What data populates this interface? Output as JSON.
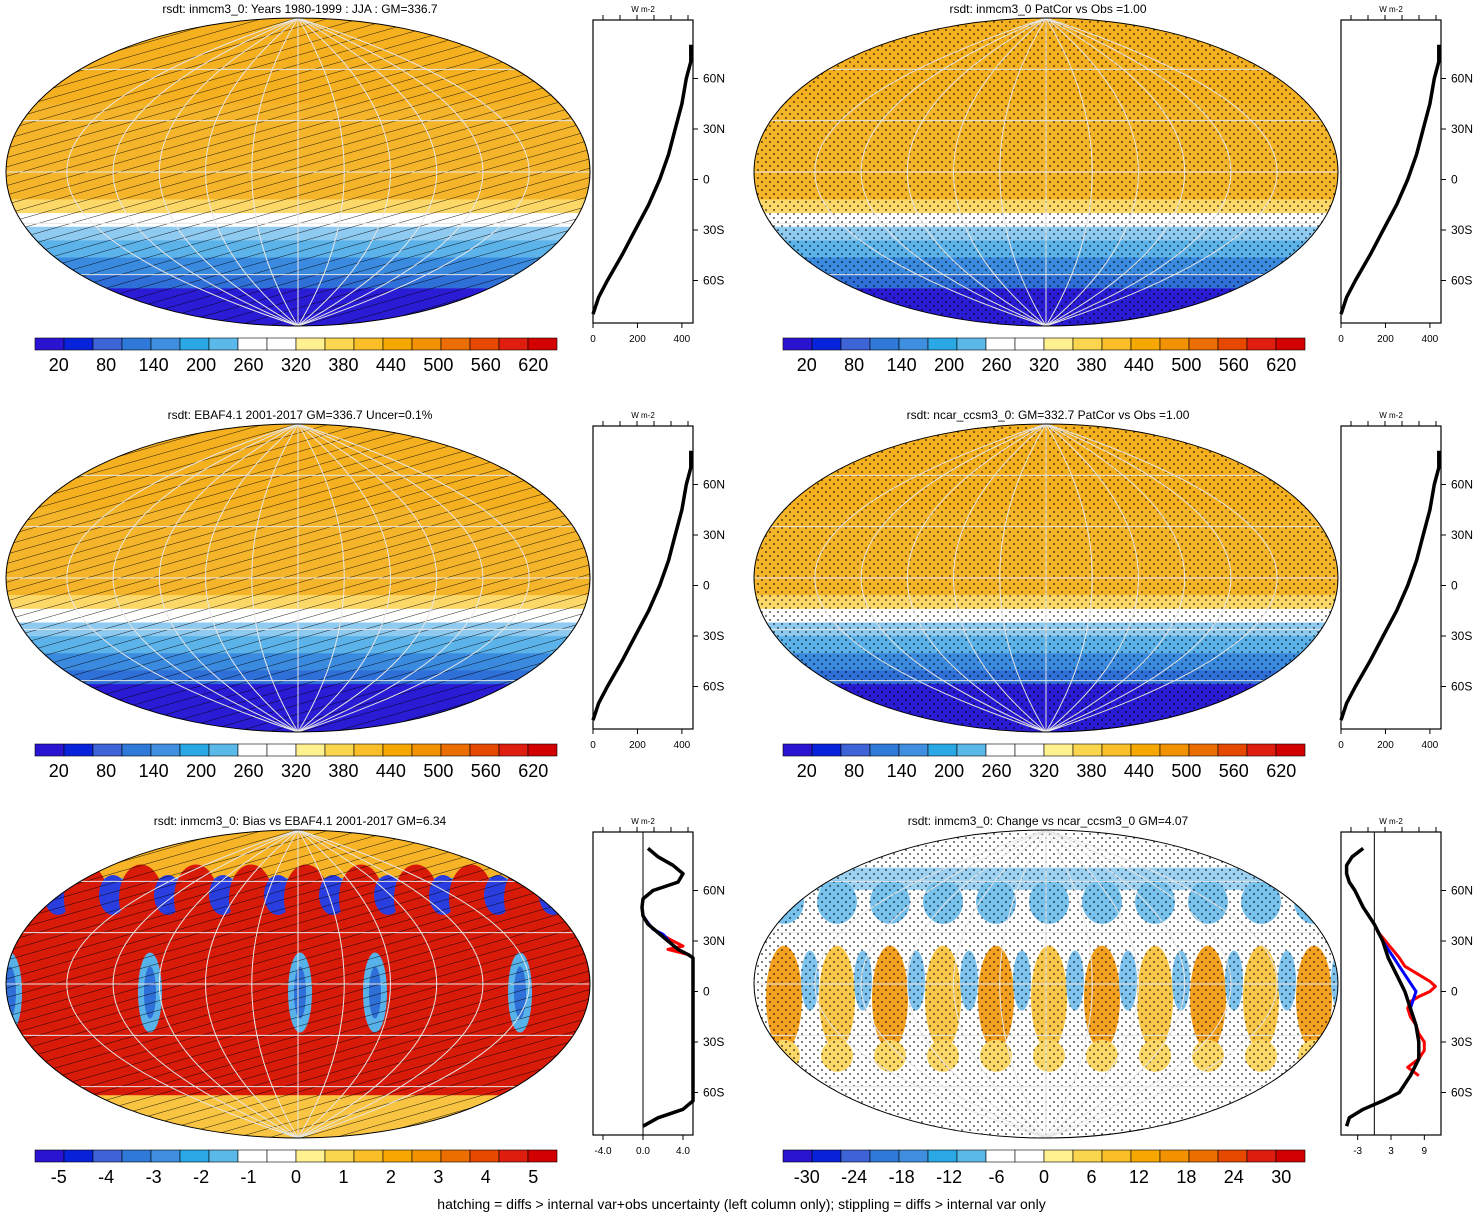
{
  "chart_data": [
    {
      "type": "heatmap",
      "title": "rsdt: inmcm3_0: Years 1980-1999 : JJA : GM=336.7",
      "colorbar_ticks": [
        "20",
        "80",
        "140",
        "200",
        "260",
        "320",
        "380",
        "440",
        "500",
        "560",
        "620"
      ],
      "colorbar_range": [
        -10,
        650
      ],
      "overlay": "hatching",
      "profile": {
        "unit": "W m-2",
        "x_ticks": [
          "0",
          "200",
          "400"
        ],
        "xlim": [
          0,
          450
        ],
        "lat_ticks": [
          "60N",
          "30N",
          "0",
          "30S",
          "60S"
        ],
        "lines": [
          {
            "color": "#000000",
            "lat": [
              80,
              70,
              60,
              45,
              30,
              15,
              0,
              -15,
              -30,
              -45,
              -60,
              -70,
              -80
            ],
            "values": [
              440,
              440,
              420,
              400,
              370,
              340,
              300,
              250,
              190,
              130,
              65,
              25,
              0
            ]
          }
        ]
      }
    },
    {
      "type": "heatmap",
      "title": "rsdt: inmcm3_0 PatCor vs Obs =1.00",
      "colorbar_ticks": [
        "20",
        "80",
        "140",
        "200",
        "260",
        "320",
        "380",
        "440",
        "500",
        "560",
        "620"
      ],
      "colorbar_range": [
        -10,
        650
      ],
      "overlay": "stippling",
      "profile": {
        "unit": "W m-2",
        "x_ticks": [
          "0",
          "200",
          "400"
        ],
        "xlim": [
          0,
          450
        ],
        "lat_ticks": [
          "60N",
          "30N",
          "0",
          "30S",
          "60S"
        ],
        "lines": [
          {
            "color": "#000000",
            "lat": [
              80,
              70,
              60,
              45,
              30,
              15,
              0,
              -15,
              -30,
              -45,
              -60,
              -70,
              -80
            ],
            "values": [
              440,
              440,
              420,
              400,
              370,
              340,
              300,
              250,
              190,
              130,
              65,
              25,
              0
            ]
          }
        ]
      }
    },
    {
      "type": "heatmap",
      "title": "rsdt: EBAF4.1 2001-2017 GM=336.7 Uncer=0.1%",
      "colorbar_ticks": [
        "20",
        "80",
        "140",
        "200",
        "260",
        "320",
        "380",
        "440",
        "500",
        "560",
        "620"
      ],
      "colorbar_range": [
        -10,
        650
      ],
      "overlay": "hatching",
      "profile": {
        "unit": "W m-2",
        "x_ticks": [
          "0",
          "200",
          "400"
        ],
        "xlim": [
          0,
          450
        ],
        "lat_ticks": [
          "60N",
          "30N",
          "0",
          "30S",
          "60S"
        ],
        "lines": [
          {
            "color": "#000000",
            "lat": [
              80,
              70,
              60,
              45,
              30,
              15,
              0,
              -15,
              -30,
              -45,
              -60,
              -70,
              -80
            ],
            "values": [
              440,
              440,
              420,
              400,
              370,
              340,
              300,
              250,
              190,
              130,
              65,
              25,
              0
            ]
          }
        ]
      }
    },
    {
      "type": "heatmap",
      "title": "rsdt: ncar_ccsm3_0: GM=332.7 PatCor vs Obs =1.00",
      "colorbar_ticks": [
        "20",
        "80",
        "140",
        "200",
        "260",
        "320",
        "380",
        "440",
        "500",
        "560",
        "620"
      ],
      "colorbar_range": [
        -10,
        650
      ],
      "overlay": "stippling",
      "profile": {
        "unit": "W m-2",
        "x_ticks": [
          "0",
          "200",
          "400"
        ],
        "xlim": [
          0,
          450
        ],
        "lat_ticks": [
          "60N",
          "30N",
          "0",
          "30S",
          "60S"
        ],
        "lines": [
          {
            "color": "#000000",
            "lat": [
              80,
              70,
              60,
              45,
              30,
              15,
              0,
              -15,
              -30,
              -45,
              -60,
              -70,
              -80
            ],
            "values": [
              440,
              440,
              420,
              400,
              370,
              340,
              300,
              250,
              190,
              130,
              65,
              25,
              0
            ]
          }
        ]
      }
    },
    {
      "type": "heatmap",
      "title": "rsdt: inmcm3_0: Bias vs EBAF4.1 2001-2017 GM=6.34",
      "colorbar_ticks": [
        "-5",
        "-4",
        "-3",
        "-2",
        "-1",
        "0",
        "1",
        "2",
        "3",
        "4",
        "5"
      ],
      "colorbar_range": [
        -5.5,
        5.5
      ],
      "overlay": "hatching",
      "profile": {
        "unit": "W m-2",
        "x_ticks": [
          "-4.0",
          "0.0",
          "4.0"
        ],
        "xlim": [
          -5,
          5
        ],
        "lat_ticks": [
          "60N",
          "30N",
          "0",
          "30S",
          "60S"
        ],
        "lines": [
          {
            "color": "#000000",
            "lat": [
              85,
              80,
              75,
              70,
              65,
              60,
              55,
              50,
              45,
              40,
              35,
              30,
              25,
              22,
              20,
              -60,
              -65,
              -70,
              -75,
              -80
            ],
            "values": [
              0.5,
              1.5,
              3,
              4,
              3.5,
              1,
              0,
              -0.1,
              0,
              0.5,
              1.5,
              2.5,
              3.5,
              4.5,
              5,
              5,
              5,
              4,
              1.5,
              0
            ]
          },
          {
            "color": "#ff0000",
            "lat": [
              45,
              40,
              35,
              30,
              27,
              25,
              22,
              20
            ],
            "values": [
              0,
              0.5,
              1.5,
              3,
              4,
              2.5,
              4.5,
              5
            ]
          },
          {
            "color": "#0000ff",
            "lat": [
              45,
              40,
              37,
              34,
              30
            ],
            "values": [
              0,
              0.6,
              1,
              2,
              2.6
            ]
          }
        ]
      }
    },
    {
      "type": "heatmap",
      "title": "rsdt: inmcm3_0: Change vs ncar_ccsm3_0 GM=4.07",
      "colorbar_ticks": [
        "-30",
        "-24",
        "-18",
        "-12",
        "-6",
        "0",
        "6",
        "12",
        "18",
        "24",
        "30"
      ],
      "colorbar_range": [
        -33,
        33
      ],
      "overlay": "stippling",
      "profile": {
        "unit": "W m-2",
        "x_ticks": [
          "-3",
          "3",
          "9"
        ],
        "xlim": [
          -6,
          12
        ],
        "lat_ticks": [
          "60N",
          "30N",
          "0",
          "30S",
          "60S"
        ],
        "lines": [
          {
            "color": "#000000",
            "lat": [
              85,
              80,
              75,
              70,
              65,
              60,
              50,
              40,
              30,
              20,
              10,
              0,
              -10,
              -20,
              -30,
              -40,
              -50,
              -60,
              -65,
              -70,
              -75,
              -80
            ],
            "values": [
              -2,
              -4,
              -5,
              -5,
              -4.5,
              -3.5,
              -2,
              0,
              1.5,
              2.5,
              4,
              5.5,
              6.5,
              7.5,
              8,
              8,
              6.5,
              4.5,
              1.5,
              -2,
              -4.5,
              -5
            ]
          },
          {
            "color": "#ff0000",
            "lat": [
              36,
              32,
              28,
              24,
              20,
              15,
              10,
              6,
              3,
              0,
              -3,
              -6,
              -10,
              -15,
              -20,
              -25,
              -30,
              -35,
              -40,
              -45,
              -50
            ],
            "values": [
              0.5,
              1.5,
              2.5,
              3.5,
              4.5,
              5.5,
              8,
              10,
              11,
              10,
              8,
              6.5,
              6,
              6.5,
              7.5,
              8,
              9,
              9,
              8,
              6,
              8
            ]
          },
          {
            "color": "#0000ff",
            "lat": [
              30,
              25,
              20,
              15,
              10,
              5,
              0,
              -5,
              -10,
              -15,
              -20
            ],
            "values": [
              1.5,
              2.5,
              3.5,
              4.5,
              5.5,
              6.5,
              7.5,
              7,
              6.5,
              7,
              7.5
            ]
          }
        ]
      }
    }
  ],
  "footer": "hatching = diffs > internal var+obs uncertainty (left column only); stippling = diffs > internal var only"
}
